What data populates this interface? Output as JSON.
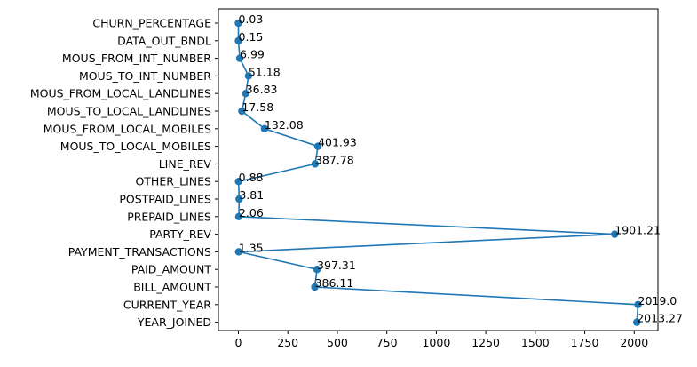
{
  "chart_data": {
    "type": "line",
    "orientation": "horizontal",
    "categories": [
      "CHURN_PERCENTAGE",
      "DATA_OUT_BNDL",
      "MOUS_FROM_INT_NUMBER",
      "MOUS_TO_INT_NUMBER",
      "MOUS_FROM_LOCAL_LANDLINES",
      "MOUS_TO_LOCAL_LANDLINES",
      "MOUS_FROM_LOCAL_MOBILES",
      "MOUS_TO_LOCAL_MOBILES",
      "LINE_REV",
      "OTHER_LINES",
      "POSTPAID_LINES",
      "PREPAID_LINES",
      "PARTY_REV",
      "PAYMENT_TRANSACTIONS",
      "PAID_AMOUNT",
      "BILL_AMOUNT",
      "CURRENT_YEAR",
      "YEAR_JOINED"
    ],
    "values": [
      0.03,
      0.15,
      6.99,
      51.18,
      36.83,
      17.58,
      132.08,
      401.93,
      387.78,
      0.88,
      3.81,
      2.06,
      1901.21,
      1.35,
      397.31,
      386.11,
      2019.0,
      2013.27
    ],
    "data_labels": [
      "0.03",
      "0.15",
      "6.99",
      "51.18",
      "36.83",
      "17.58",
      "132.08",
      "401.93",
      "387.78",
      "0.88",
      "3.81",
      "2.06",
      "1901.21",
      "1.35",
      "397.31",
      "386.11",
      "2019.0",
      "2013.27"
    ],
    "x_ticks": [
      "0",
      "250",
      "500",
      "750",
      "1000",
      "1250",
      "1500",
      "1750",
      "2000"
    ],
    "x_tick_values": [
      0,
      250,
      500,
      750,
      1000,
      1250,
      1500,
      1750,
      2000
    ],
    "xlim": [
      -100.9,
      2119.9
    ],
    "title": "",
    "xlabel": "",
    "ylabel": "",
    "grid": false,
    "legend": "none",
    "colors": {
      "series": "#1f77b4",
      "axis": "#000000"
    },
    "marker": "circle"
  }
}
